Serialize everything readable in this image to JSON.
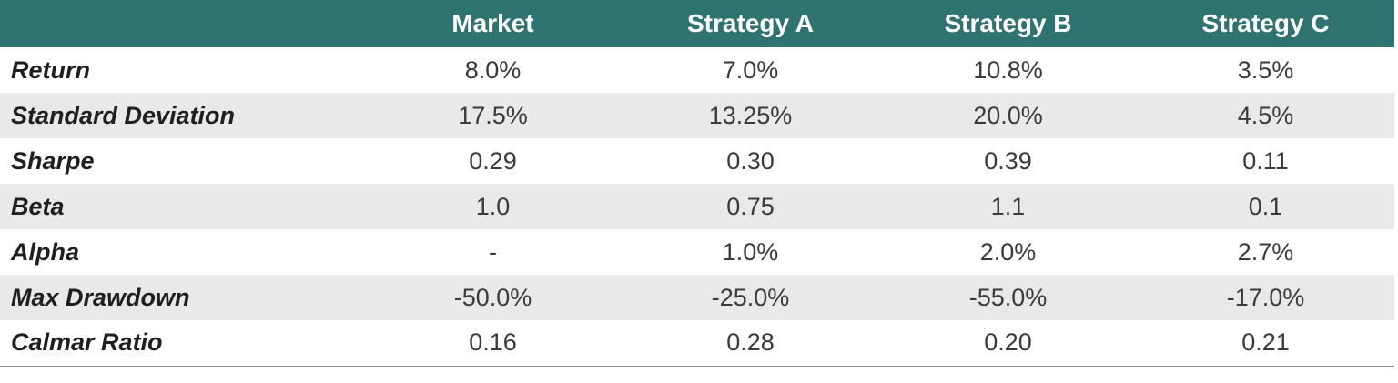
{
  "chart_data": {
    "type": "table",
    "columns": [
      "",
      "Market",
      "Strategy A",
      "Strategy B",
      "Strategy C"
    ],
    "rows": [
      {
        "label": "Return",
        "values": [
          "8.0%",
          "7.0%",
          "10.8%",
          "3.5%"
        ]
      },
      {
        "label": "Standard Deviation",
        "values": [
          "17.5%",
          "13.25%",
          "20.0%",
          "4.5%"
        ]
      },
      {
        "label": "Sharpe",
        "values": [
          "0.29",
          "0.30",
          "0.39",
          "0.11"
        ]
      },
      {
        "label": "Beta",
        "values": [
          "1.0",
          "0.75",
          "1.1",
          "0.1"
        ]
      },
      {
        "label": "Alpha",
        "values": [
          "-",
          "1.0%",
          "2.0%",
          "2.7%"
        ]
      },
      {
        "label": "Max Drawdown",
        "values": [
          "-50.0%",
          "-25.0%",
          "-55.0%",
          "-17.0%"
        ]
      },
      {
        "label": "Calmar Ratio",
        "values": [
          "0.16",
          "0.28",
          "0.20",
          "0.21"
        ]
      }
    ],
    "colors": {
      "header_background": "#2f7370",
      "header_text": "#ffffff",
      "stripe": "#e9e9e9"
    }
  }
}
